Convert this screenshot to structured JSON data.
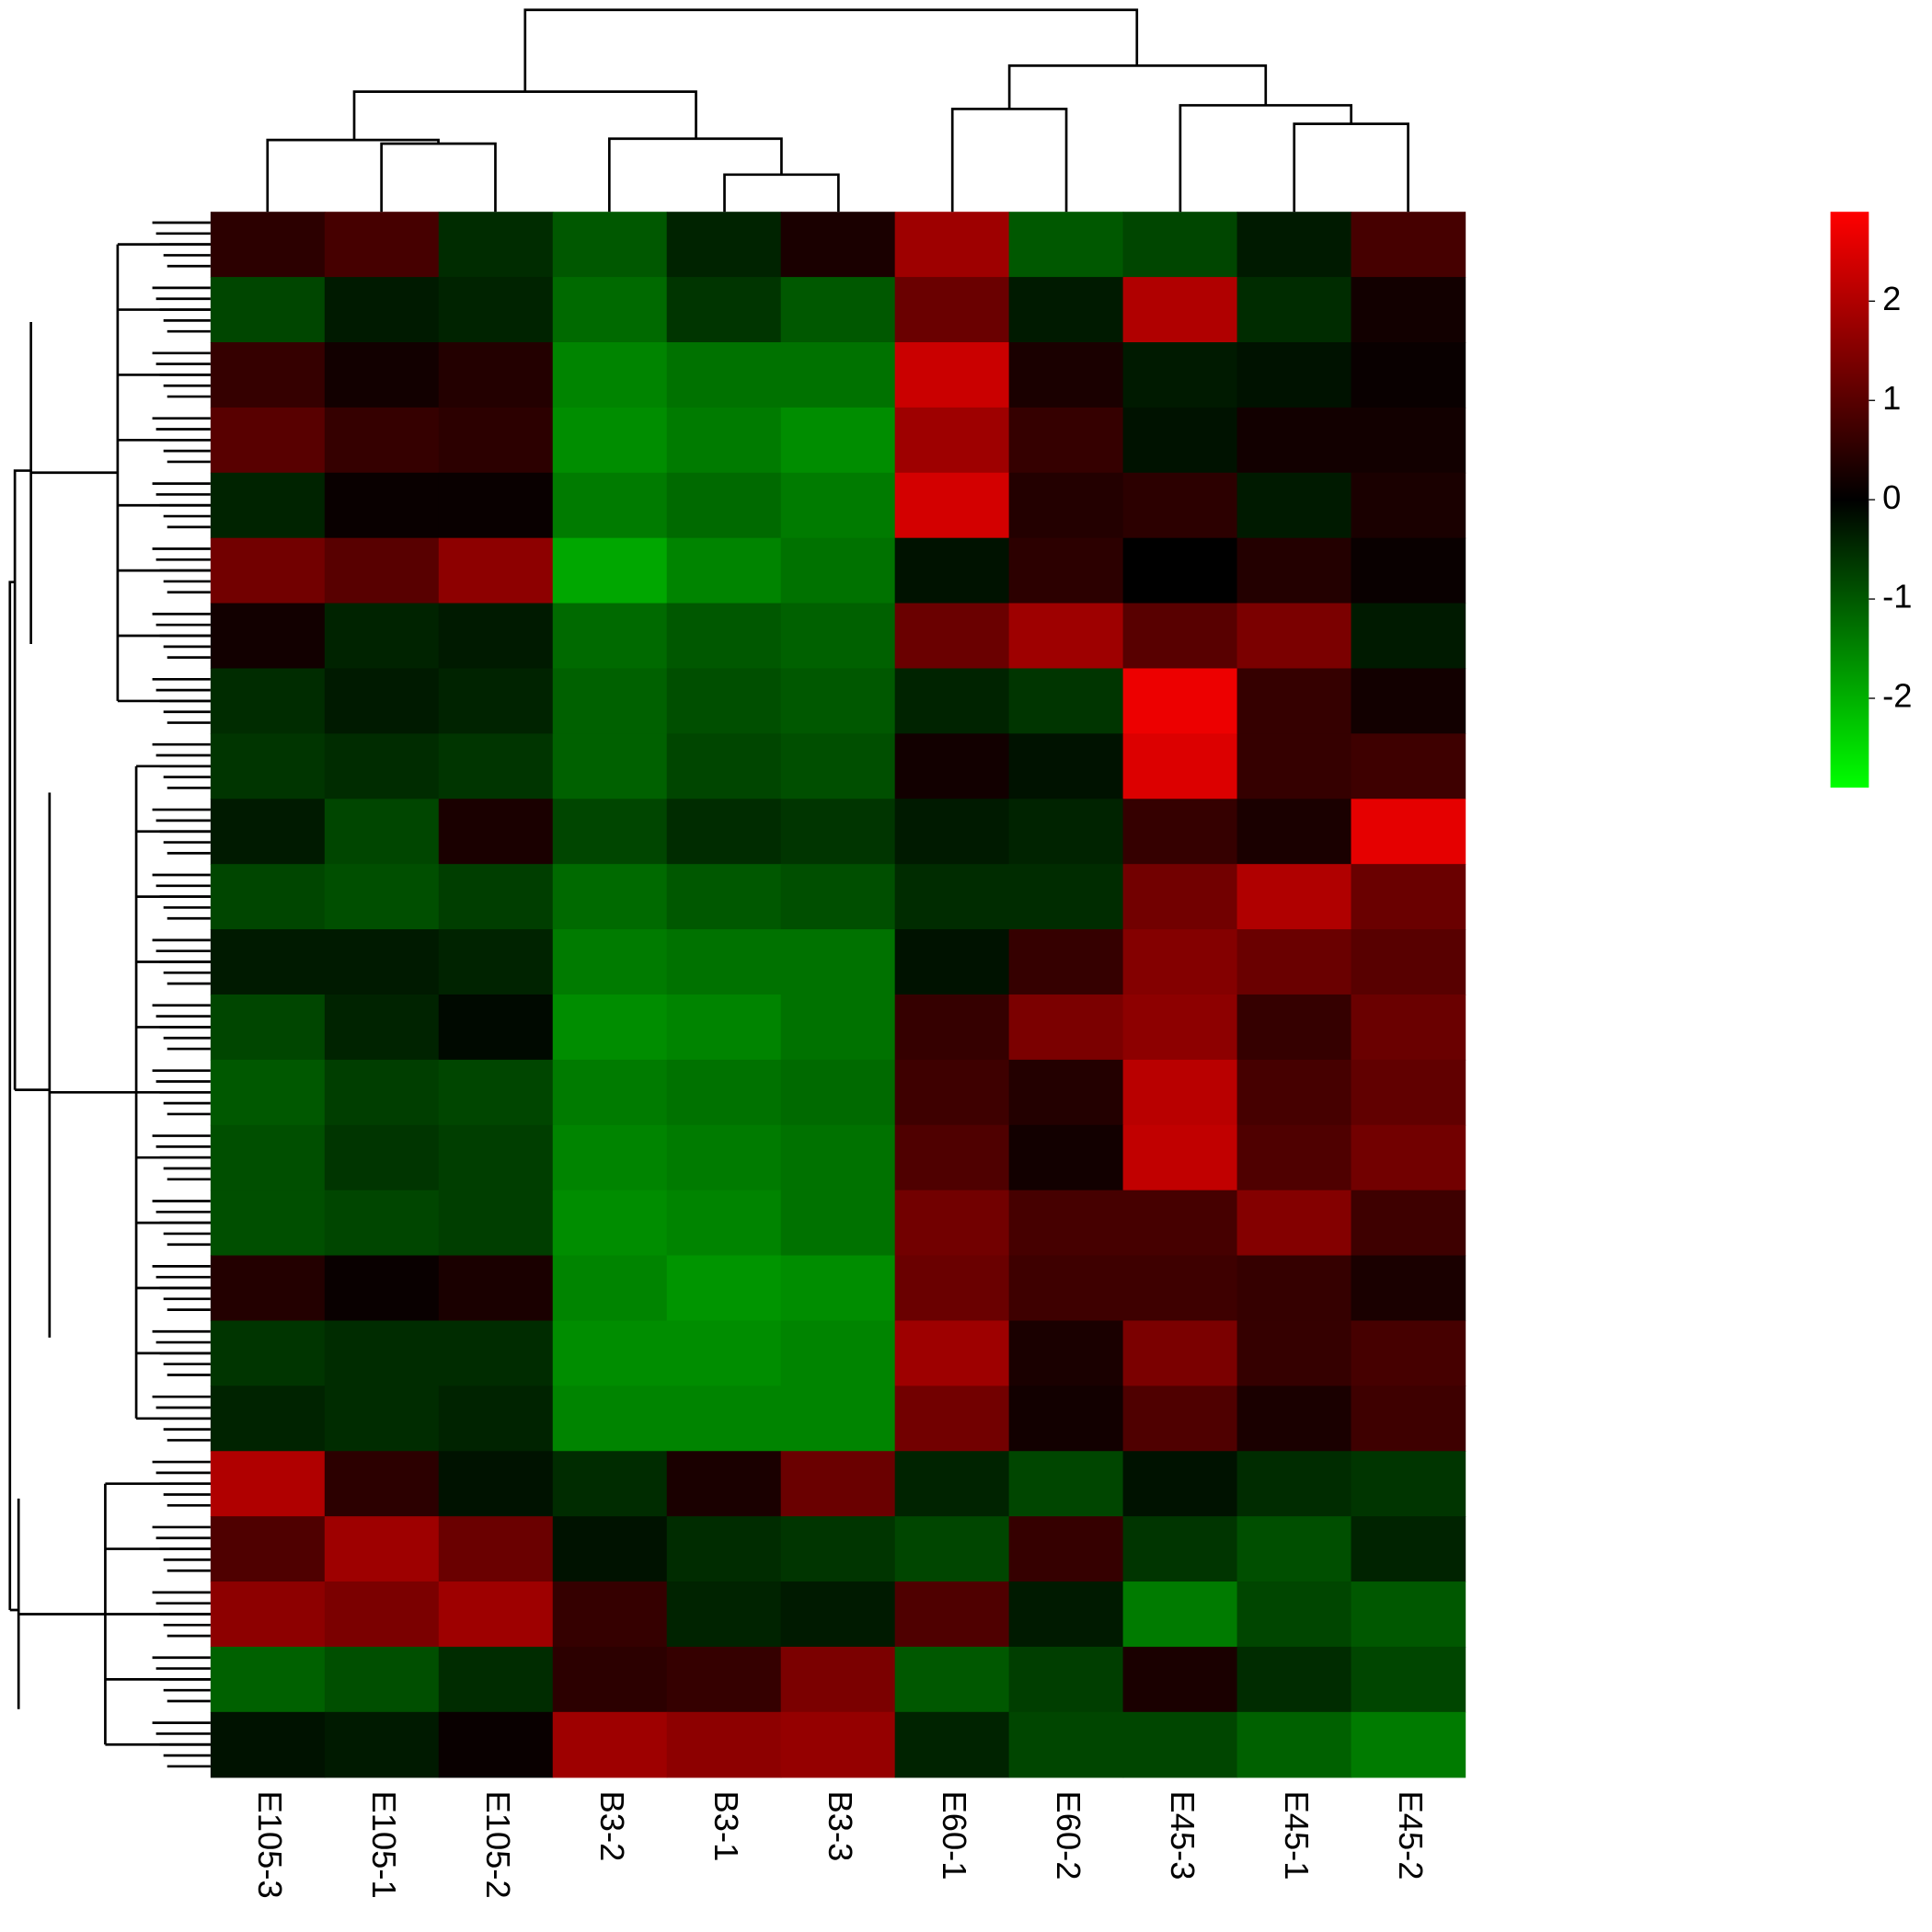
{
  "chart_data": {
    "type": "heatmap",
    "x": [
      "E105-3",
      "E105-1",
      "E105-2",
      "B3-2",
      "B3-1",
      "B3-3",
      "E60-1",
      "E60-2",
      "E45-3",
      "E45-1",
      "E45-2"
    ],
    "z": [
      [
        0.5,
        0.8,
        -0.5,
        -1,
        -0.4,
        0.3,
        1.8,
        -1,
        -0.8,
        -0.3,
        0.8
      ],
      [
        -0.8,
        -0.3,
        -0.4,
        -1.2,
        -0.6,
        -1,
        1.2,
        -0.3,
        2,
        -0.5,
        0.2
      ],
      [
        0.6,
        0.2,
        0.4,
        -1.5,
        -1.3,
        -1.3,
        2.3,
        0.3,
        -0.3,
        -0.2,
        0.1
      ],
      [
        1,
        0.6,
        0.5,
        -1.6,
        -1.4,
        -1.6,
        1.8,
        0.6,
        -0.2,
        0.2,
        0.2
      ],
      [
        -0.4,
        0.1,
        0.1,
        -1.4,
        -1.2,
        -1.4,
        2.4,
        0.4,
        0.5,
        -0.3,
        0.3
      ],
      [
        1.3,
        1,
        1.6,
        -1.9,
        -1.5,
        -1.3,
        -0.2,
        0.5,
        0,
        0.4,
        0.1
      ],
      [
        0.2,
        -0.4,
        -0.3,
        -1.2,
        -1,
        -1.1,
        1.2,
        1.8,
        1,
        1.4,
        -0.3
      ],
      [
        -0.5,
        -0.3,
        -0.4,
        -1.1,
        -0.9,
        -1,
        -0.4,
        -0.6,
        2.7,
        0.6,
        0.2
      ],
      [
        -0.6,
        -0.5,
        -0.6,
        -1.1,
        -0.8,
        -0.9,
        0.2,
        -0.2,
        2.5,
        0.6,
        0.7
      ],
      [
        -0.3,
        -0.8,
        0.3,
        -0.8,
        -0.5,
        -0.6,
        -0.3,
        -0.4,
        0.6,
        0.3,
        2.6
      ],
      [
        -0.8,
        -0.9,
        -0.7,
        -1.2,
        -1,
        -0.9,
        -0.5,
        -0.5,
        1.3,
        2,
        1.2
      ],
      [
        -0.3,
        -0.3,
        -0.4,
        -1.4,
        -1.3,
        -1.3,
        -0.2,
        0.6,
        1.5,
        1.2,
        1
      ],
      [
        -0.8,
        -0.4,
        -0.1,
        -1.6,
        -1.5,
        -1.3,
        0.6,
        1.4,
        1.6,
        0.6,
        1.2
      ],
      [
        -1,
        -0.7,
        -0.8,
        -1.4,
        -1.3,
        -1.2,
        0.7,
        0.4,
        2.1,
        0.8,
        1.1
      ],
      [
        -0.9,
        -0.6,
        -0.7,
        -1.5,
        -1.4,
        -1.3,
        0.9,
        0.2,
        2.2,
        0.9,
        1.3
      ],
      [
        -0.9,
        -0.8,
        -0.7,
        -1.6,
        -1.5,
        -1.3,
        1.3,
        0.8,
        0.8,
        1.5,
        0.7
      ],
      [
        0.4,
        0.1,
        0.3,
        -1.5,
        -1.7,
        -1.6,
        1.2,
        0.7,
        0.7,
        0.6,
        0.3
      ],
      [
        -0.6,
        -0.5,
        -0.5,
        -1.6,
        -1.6,
        -1.5,
        1.8,
        0.3,
        1.4,
        0.6,
        0.8
      ],
      [
        -0.4,
        -0.5,
        -0.4,
        -1.5,
        -1.5,
        -1.5,
        1.3,
        0.2,
        0.9,
        0.3,
        0.7
      ],
      [
        2,
        0.5,
        -0.2,
        -0.5,
        0.3,
        1.2,
        -0.4,
        -0.8,
        -0.2,
        -0.5,
        -0.6
      ],
      [
        0.9,
        1.8,
        1.2,
        -0.2,
        -0.5,
        -0.6,
        -0.8,
        0.6,
        -0.6,
        -0.9,
        -0.4
      ],
      [
        1.6,
        1.4,
        1.8,
        0.6,
        -0.4,
        -0.3,
        0.9,
        -0.3,
        -1.4,
        -0.8,
        -1
      ],
      [
        -1.1,
        -0.9,
        -0.5,
        0.5,
        0.6,
        1.4,
        -1,
        -0.7,
        0.3,
        -0.5,
        -0.8
      ],
      [
        -0.2,
        -0.3,
        0.1,
        1.8,
        1.6,
        1.7,
        -0.4,
        -0.8,
        -0.8,
        -1.1,
        -1.4
      ]
    ],
    "zlim": [
      -2.9,
      2.9
    ],
    "zticks": [
      -2,
      -1,
      0,
      1,
      2
    ],
    "colorscale": [
      "#00ff00",
      "#000000",
      "#ff0000"
    ]
  }
}
